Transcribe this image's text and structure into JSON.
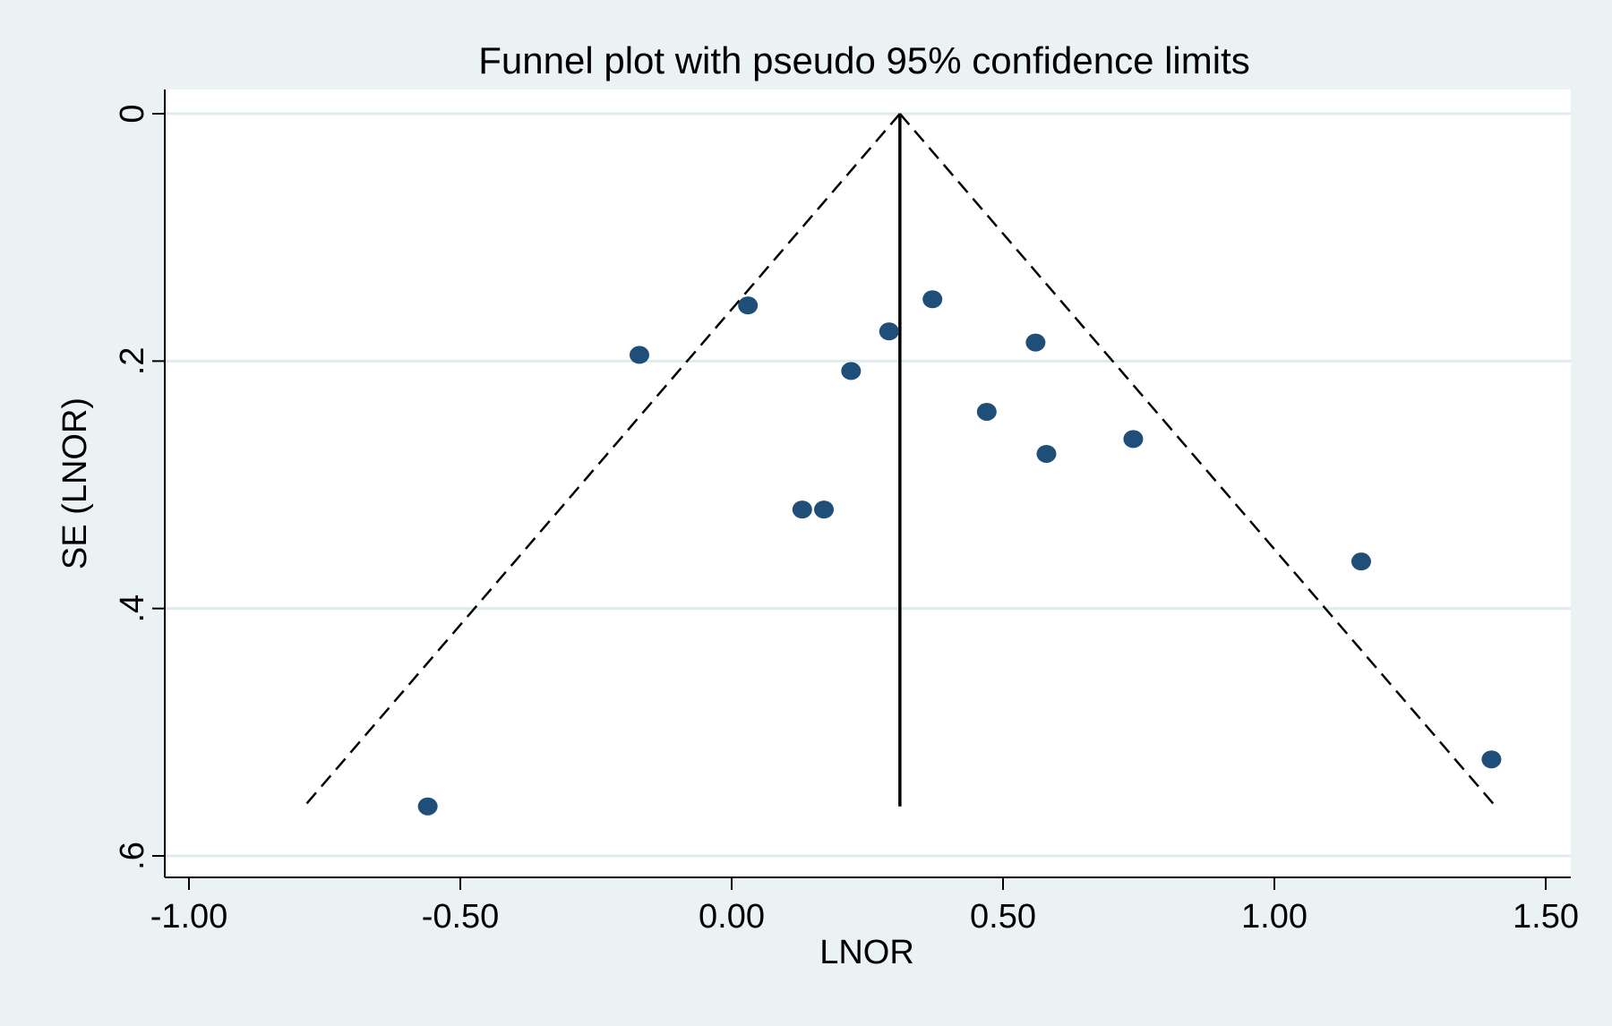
{
  "chart_data": {
    "type": "scatter",
    "title": "Funnel plot with pseudo 95% confidence limits",
    "xlabel": "LNOR",
    "ylabel": "SE (LNOR)",
    "xlim": [
      -1.05,
      1.55
    ],
    "ylim": [
      0,
      0.6
    ],
    "y_reversed": true,
    "grid": "horizontal",
    "x_ticks": [
      -1.0,
      -0.5,
      0.0,
      0.5,
      1.0,
      1.5
    ],
    "x_tick_labels": [
      "-1.00",
      "-0.50",
      "0.00",
      "0.50",
      "1.00",
      "1.50"
    ],
    "y_ticks": [
      0,
      0.2,
      0.4,
      0.6
    ],
    "y_tick_labels": [
      "0",
      ".2",
      ".4",
      ".6"
    ],
    "pooled_estimate": 0.31,
    "max_se": 0.56,
    "z": 1.96,
    "point_color": "#1f4e79",
    "points": [
      {
        "x": -0.56,
        "y": 0.56
      },
      {
        "x": -0.17,
        "y": 0.195
      },
      {
        "x": 0.03,
        "y": 0.155
      },
      {
        "x": 0.13,
        "y": 0.32
      },
      {
        "x": 0.17,
        "y": 0.32
      },
      {
        "x": 0.22,
        "y": 0.208
      },
      {
        "x": 0.29,
        "y": 0.176
      },
      {
        "x": 0.37,
        "y": 0.15
      },
      {
        "x": 0.47,
        "y": 0.241
      },
      {
        "x": 0.56,
        "y": 0.185
      },
      {
        "x": 0.58,
        "y": 0.275
      },
      {
        "x": 0.74,
        "y": 0.263
      },
      {
        "x": 1.16,
        "y": 0.362
      },
      {
        "x": 1.4,
        "y": 0.522
      }
    ]
  }
}
